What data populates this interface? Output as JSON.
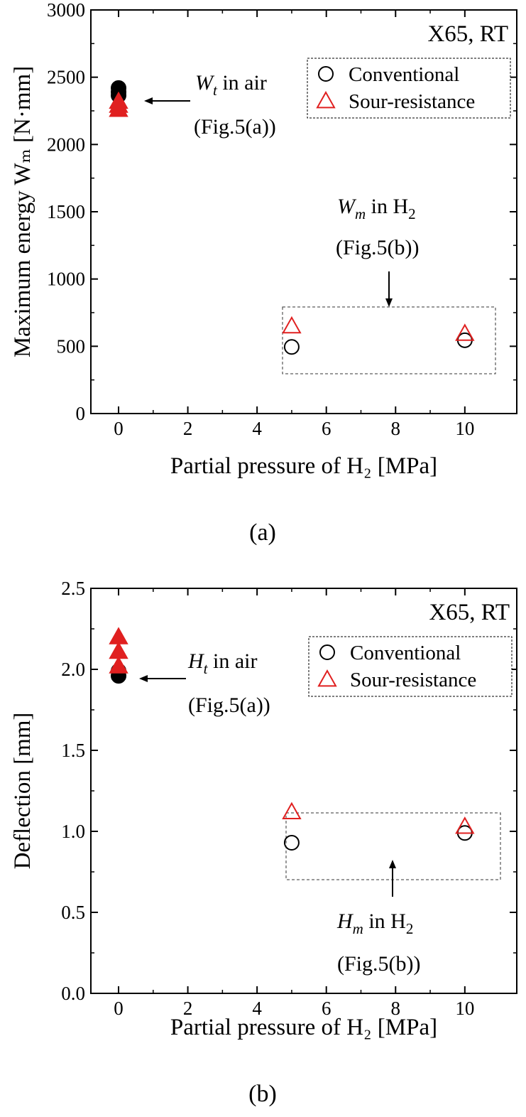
{
  "chart_data": [
    {
      "type": "scatter",
      "panel_label": "(a)",
      "title": "X65, RT",
      "xlabel": "Partial pressure of H₂ [MPa]",
      "ylabel": "Maximum energy Wₘ [N·mm]",
      "xlim": [
        -0.8,
        11.5
      ],
      "ylim": [
        0,
        3000
      ],
      "xticks": [
        "0",
        "2",
        "4",
        "6",
        "8",
        "10"
      ],
      "yticks": [
        "0",
        "500",
        "1000",
        "1500",
        "2000",
        "2500",
        "3000"
      ],
      "grid": false,
      "legend": {
        "position": "top-right",
        "entries": [
          "Conventional",
          "Sour-resistance"
        ]
      },
      "series": [
        {
          "name": "Conventional",
          "marker": "circle",
          "color": "#000000",
          "fill": "none",
          "x": [
            5,
            10
          ],
          "y": [
            495,
            545
          ]
        },
        {
          "name": "Sour-resistance",
          "marker": "triangle",
          "color": "#e02020",
          "fill": "none",
          "x": [
            5,
            10
          ],
          "y": [
            650,
            595
          ]
        },
        {
          "marker": "circle",
          "color": "#000000",
          "fill": "#000000",
          "x": [
            0,
            0,
            0
          ],
          "y": [
            2420,
            2390,
            2365
          ]
        },
        {
          "marker": "triangle",
          "color": "#e02020",
          "fill": "#e02020",
          "x": [
            0,
            0,
            0
          ],
          "y": [
            2320,
            2290,
            2260
          ]
        }
      ],
      "annotations": [
        {
          "main": "W",
          "sub": "t",
          "rest": " in air",
          "line2": "(Fig.5(a))"
        },
        {
          "main": "W",
          "sub": "m",
          "rest": " in H",
          "rest_sub": "2",
          "line2": "(Fig.5(b))"
        }
      ]
    },
    {
      "type": "scatter",
      "panel_label": "(b)",
      "title": "X65, RT",
      "xlabel": "Partial pressure of H₂ [MPa]",
      "ylabel": "Deflection [mm]",
      "xlim": [
        -0.8,
        11.5
      ],
      "ylim": [
        0,
        2.5
      ],
      "xticks": [
        "0",
        "2",
        "4",
        "6",
        "8",
        "10"
      ],
      "yticks": [
        "0.0",
        "0.5",
        "1.0",
        "1.5",
        "2.0",
        "2.5"
      ],
      "grid": false,
      "legend": {
        "position": "top-right",
        "entries": [
          "Conventional",
          "Sour-resistance"
        ]
      },
      "series": [
        {
          "name": "Conventional",
          "marker": "circle",
          "color": "#000000",
          "fill": "none",
          "x": [
            5,
            10
          ],
          "y": [
            0.93,
            0.99
          ]
        },
        {
          "name": "Sour-resistance",
          "marker": "triangle",
          "color": "#e02020",
          "fill": "none",
          "x": [
            5,
            10
          ],
          "y": [
            1.12,
            1.03
          ]
        },
        {
          "marker": "circle",
          "color": "#000000",
          "fill": "#000000",
          "x": [
            0,
            0
          ],
          "y": [
            1.99,
            1.96
          ]
        },
        {
          "marker": "triangle",
          "color": "#e02020",
          "fill": "#e02020",
          "x": [
            0,
            0,
            0
          ],
          "y": [
            2.2,
            2.11,
            2.02
          ]
        }
      ],
      "annotations": [
        {
          "main": "H",
          "sub": "t",
          "rest": " in air",
          "line2": "(Fig.5(a))"
        },
        {
          "main": "H",
          "sub": "m",
          "rest": " in H",
          "rest_sub": "2",
          "line2": "(Fig.5(b))"
        }
      ]
    }
  ]
}
